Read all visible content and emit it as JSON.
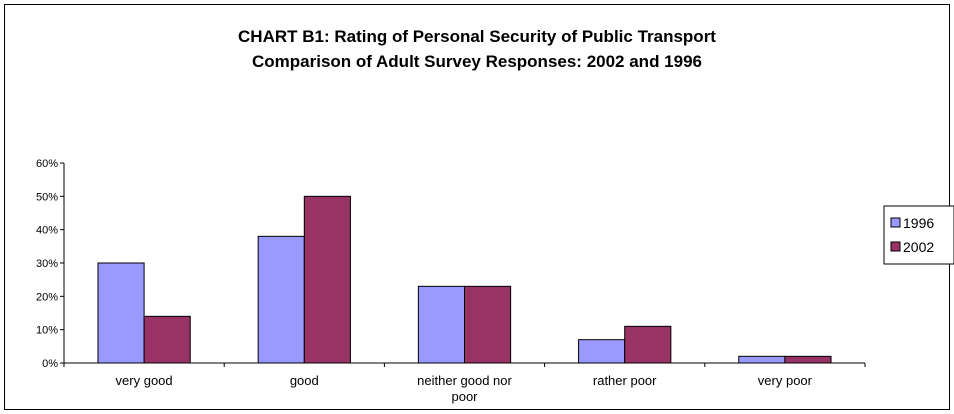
{
  "chart_data": {
    "type": "bar",
    "title": "CHART B1: Rating of Personal Security of Public Transport",
    "subtitle": "Comparison of Adult Survey Responses: 2002 and 1996",
    "categories": [
      [
        "very good"
      ],
      [
        "good"
      ],
      [
        "neither good nor",
        "poor"
      ],
      [
        "rather poor"
      ],
      [
        "very poor"
      ]
    ],
    "series": [
      {
        "name": "1996",
        "color": "#9999ff",
        "values": [
          30,
          38,
          23,
          7,
          2
        ]
      },
      {
        "name": "2002",
        "color": "#993366",
        "values": [
          14,
          50,
          23,
          11,
          2
        ]
      }
    ],
    "y_ticks": [
      "0%",
      "10%",
      "20%",
      "30%",
      "40%",
      "50%",
      "60%"
    ],
    "ylim": [
      0,
      60
    ],
    "xlabel": "",
    "ylabel": "",
    "grid": false,
    "legend_position": "right"
  }
}
